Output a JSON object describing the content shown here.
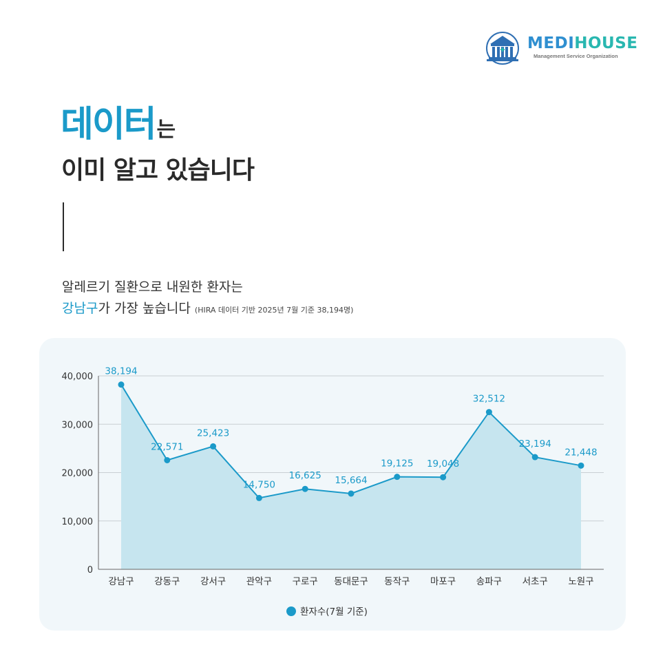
{
  "brand": {
    "name_part1": "MEDI",
    "name_part2": "HOUSE",
    "tagline": "Management Service Organization",
    "logo_icon": "building-icon"
  },
  "headline": {
    "accent": "데이터",
    "rest": "는",
    "line2": "이미 알고 있습니다"
  },
  "description": {
    "line1": "알레르기 질환으로 내원한 환자는",
    "highlight": "강남구",
    "line2_rest": "가 가장 높습니다",
    "note": "(HIRA 데이터 기반 2025년 7월 기준 38,194명)"
  },
  "colors": {
    "accent": "#1b9ac9",
    "area_fill": "#c6e5ef",
    "panel_bg": "#f1f7fa",
    "grid": "#c9cfd3",
    "text": "#2a2a2a"
  },
  "chart_data": {
    "type": "area",
    "categories": [
      "강남구",
      "강동구",
      "강서구",
      "관악구",
      "구로구",
      "동대문구",
      "동작구",
      "마포구",
      "송파구",
      "서초구",
      "노원구"
    ],
    "series": [
      {
        "name": "환자수(7월 기준)",
        "values": [
          38194,
          22571,
          25423,
          14750,
          16625,
          15664,
          19125,
          19048,
          32512,
          23194,
          21448
        ],
        "labels": [
          "38,194",
          "22,571",
          "25,423",
          "14,750",
          "16,625",
          "15,664",
          "19,125",
          "19,048",
          "32,512",
          "23,194",
          "21,448"
        ]
      }
    ],
    "ylim": [
      0,
      40000
    ],
    "yticks": [
      0,
      10000,
      20000,
      30000,
      40000
    ],
    "ytick_labels": [
      "0",
      "10,000",
      "20,000",
      "30,000",
      "40,000"
    ],
    "grid": true,
    "legend": "bottom",
    "title": "",
    "xlabel": "",
    "ylabel": ""
  }
}
